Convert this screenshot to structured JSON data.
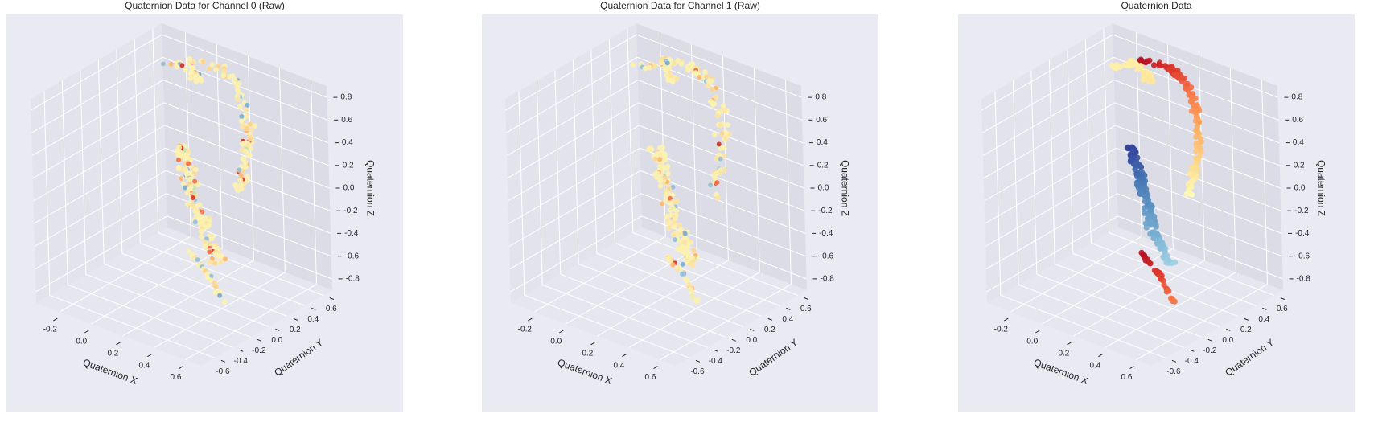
{
  "colors": {
    "figure_bg": "#ffffff",
    "axes_bg": "#eaeaf2",
    "pane_x": "#e3e3ec",
    "pane_y": "#dcdce6",
    "pane_z": "#e6e6ef",
    "grid": "#ffffff",
    "text": "#262626",
    "colormap": "RdYlBu",
    "raw_palette": [
      "#fdf2a9",
      "#fee39a",
      "#fed28a",
      "#fdb567",
      "#f46d43",
      "#d73027",
      "#91bfdb",
      "#74add1",
      "#c7e39e"
    ]
  },
  "chart_data": [
    {
      "type": "scatter3d",
      "title": "Quaternion Data for Channel 0 (Raw)",
      "xlabel": "Quaternion X",
      "ylabel": "Quaternion Y",
      "zlabel": "Quaternion Z",
      "xlim": [
        -0.35,
        0.7
      ],
      "ylim": [
        -0.75,
        0.7
      ],
      "zlim": [
        -0.9,
        0.9
      ],
      "xticks": [
        "-0.2",
        "0.0",
        "0.2",
        "0.4",
        "0.6"
      ],
      "xtick_values": [
        -0.2,
        0.0,
        0.2,
        0.4,
        0.6
      ],
      "yticks": [
        "-0.6",
        "-0.4",
        "-0.2",
        "0.0",
        "0.2",
        "0.4",
        "0.6"
      ],
      "ytick_values": [
        -0.6,
        -0.4,
        -0.2,
        0.0,
        0.2,
        0.4,
        0.6
      ],
      "zticks": [
        "-0.8",
        "-0.6",
        "-0.4",
        "-0.2",
        "0.0",
        "0.2",
        "0.4",
        "0.6",
        "0.8"
      ],
      "ztick_values": [
        -0.8,
        -0.6,
        -0.4,
        -0.2,
        0.0,
        0.2,
        0.4,
        0.6,
        0.8
      ],
      "grid": true,
      "color_mode": "raw",
      "marker_size": 3.2,
      "clusters": [
        {
          "path": [
            [
              -0.15,
              0.6,
              0.74
            ],
            [
              0.05,
              0.62,
              0.76
            ],
            [
              0.2,
              0.55,
              0.74
            ],
            [
              0.35,
              0.4,
              0.66
            ],
            [
              0.48,
              0.2,
              0.52
            ],
            [
              0.55,
              0.02,
              0.38
            ],
            [
              0.56,
              -0.05,
              0.22
            ]
          ],
          "count": 90,
          "spread": 0.014
        },
        {
          "path": [
            [
              -0.22,
              0.45,
              0.7
            ],
            [
              -0.12,
              0.6,
              0.72
            ],
            [
              -0.05,
              0.55,
              0.65
            ],
            [
              0.0,
              0.5,
              0.68
            ]
          ],
          "count": 30,
          "spread": 0.012
        },
        {
          "path": [
            [
              -0.1,
              0.45,
              0.05
            ],
            [
              0.1,
              0.2,
              -0.05
            ],
            [
              0.35,
              -0.1,
              -0.18
            ],
            [
              0.55,
              -0.28,
              -0.3
            ]
          ],
          "count": 140,
          "spread": 0.02
        },
        {
          "path": [
            [
              -0.1,
              0.5,
              -0.88
            ],
            [
              0.15,
              0.3,
              -0.88
            ],
            [
              0.38,
              0.05,
              -0.88
            ]
          ],
          "count": 30,
          "spread": 0.006
        }
      ]
    },
    {
      "type": "scatter3d",
      "title": "Quaternion Data for Channel 1 (Raw)",
      "xlabel": "Quaternion X",
      "ylabel": "Quaternion Y",
      "zlabel": "Quaternion Z",
      "xlim": [
        -0.35,
        0.7
      ],
      "ylim": [
        -0.75,
        0.7
      ],
      "zlim": [
        -0.9,
        0.9
      ],
      "xticks": [
        "-0.2",
        "0.0",
        "0.2",
        "0.4",
        "0.6"
      ],
      "xtick_values": [
        -0.2,
        0.0,
        0.2,
        0.4,
        0.6
      ],
      "yticks": [
        "-0.6",
        "-0.4",
        "-0.2",
        "0.0",
        "0.2",
        "0.4",
        "0.6"
      ],
      "ytick_values": [
        -0.6,
        -0.4,
        -0.2,
        0.0,
        0.2,
        0.4,
        0.6
      ],
      "zticks": [
        "-0.8",
        "-0.6",
        "-0.4",
        "-0.2",
        "0.0",
        "0.2",
        "0.4",
        "0.6",
        "0.8"
      ],
      "ztick_values": [
        -0.8,
        -0.6,
        -0.4,
        -0.2,
        0.0,
        0.2,
        0.4,
        0.6,
        0.8
      ],
      "grid": true,
      "color_mode": "raw",
      "marker_size": 3.2,
      "clusters": [
        {
          "path": [
            [
              -0.15,
              0.6,
              0.74
            ],
            [
              0.05,
              0.62,
              0.76
            ],
            [
              0.2,
              0.55,
              0.74
            ],
            [
              0.35,
              0.4,
              0.66
            ],
            [
              0.48,
              0.2,
              0.52
            ],
            [
              0.55,
              0.02,
              0.38
            ],
            [
              0.56,
              -0.05,
              0.22
            ]
          ],
          "count": 90,
          "spread": 0.014
        },
        {
          "path": [
            [
              -0.22,
              0.45,
              0.7
            ],
            [
              -0.12,
              0.6,
              0.72
            ],
            [
              -0.05,
              0.55,
              0.65
            ],
            [
              0.0,
              0.5,
              0.68
            ]
          ],
          "count": 30,
          "spread": 0.012
        },
        {
          "path": [
            [
              -0.1,
              0.45,
              0.05
            ],
            [
              0.1,
              0.2,
              -0.05
            ],
            [
              0.35,
              -0.1,
              -0.18
            ],
            [
              0.55,
              -0.28,
              -0.3
            ]
          ],
          "count": 140,
          "spread": 0.02
        },
        {
          "path": [
            [
              -0.1,
              0.5,
              -0.88
            ],
            [
              0.15,
              0.3,
              -0.88
            ],
            [
              0.38,
              0.05,
              -0.88
            ]
          ],
          "count": 30,
          "spread": 0.006
        }
      ]
    },
    {
      "type": "scatter3d",
      "title": "Quaternion Data",
      "xlabel": "Quaternion X",
      "ylabel": "Quaternion Y",
      "zlabel": "Quaternion Z",
      "xlim": [
        -0.35,
        0.7
      ],
      "ylim": [
        -0.75,
        0.7
      ],
      "zlim": [
        -0.9,
        0.9
      ],
      "xticks": [
        "-0.2",
        "0.0",
        "0.2",
        "0.4",
        "0.6"
      ],
      "xtick_values": [
        -0.2,
        0.0,
        0.2,
        0.4,
        0.6
      ],
      "yticks": [
        "-0.6",
        "-0.4",
        "-0.2",
        "0.0",
        "0.2",
        "0.4",
        "0.6"
      ],
      "ytick_values": [
        -0.6,
        -0.4,
        -0.2,
        0.0,
        0.2,
        0.4,
        0.6
      ],
      "zticks": [
        "-0.8",
        "-0.6",
        "-0.4",
        "-0.2",
        "0.0",
        "0.2",
        "0.4",
        "0.6",
        "0.8"
      ],
      "ztick_values": [
        -0.8,
        -0.6,
        -0.4,
        -0.2,
        0.0,
        0.2,
        0.4,
        0.6,
        0.8
      ],
      "grid": true,
      "color_mode": "gradient",
      "marker_size": 3.6,
      "clusters": [
        {
          "path": [
            [
              -0.22,
              0.45,
              0.7
            ],
            [
              -0.12,
              0.6,
              0.72
            ],
            [
              -0.05,
              0.55,
              0.65
            ],
            [
              0.0,
              0.5,
              0.68
            ]
          ],
          "count": 40,
          "spread": 0.01,
          "c": [
            0.45,
            0.42
          ]
        },
        {
          "path": [
            [
              -0.15,
              0.6,
              0.74
            ],
            [
              0.05,
              0.62,
              0.76
            ],
            [
              0.2,
              0.55,
              0.74
            ],
            [
              0.35,
              0.4,
              0.66
            ],
            [
              0.48,
              0.2,
              0.52
            ],
            [
              0.55,
              0.02,
              0.38
            ],
            [
              0.56,
              -0.05,
              0.22
            ]
          ],
          "count": 120,
          "spread": 0.01,
          "c": [
            0.02,
            0.48
          ]
        },
        {
          "path": [
            [
              -0.1,
              0.45,
              0.05
            ],
            [
              0.1,
              0.2,
              -0.05
            ],
            [
              0.35,
              -0.1,
              -0.18
            ],
            [
              0.55,
              -0.28,
              -0.3
            ]
          ],
          "count": 160,
          "spread": 0.012,
          "c": [
            0.98,
            0.72
          ]
        },
        {
          "path": [
            [
              -0.1,
              0.5,
              -0.88
            ],
            [
              0.15,
              0.3,
              -0.88
            ],
            [
              0.38,
              0.05,
              -0.88
            ]
          ],
          "count": 45,
          "spread": 0.004,
          "c": [
            0.02,
            0.22
          ]
        }
      ]
    }
  ]
}
